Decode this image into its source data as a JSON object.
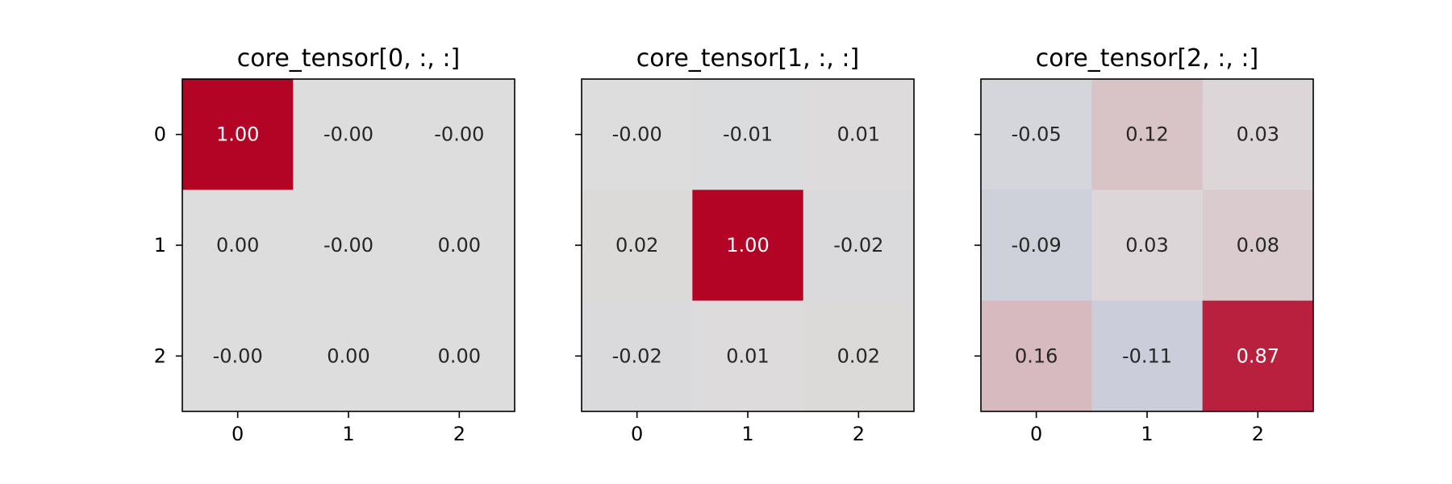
{
  "chart_data": [
    {
      "type": "heatmap",
      "title": "core_tensor[0, :, :]",
      "x_ticks": [
        "0",
        "1",
        "2"
      ],
      "y_ticks": [
        "0",
        "1",
        "2"
      ],
      "show_y_tick_labels": true,
      "values": [
        [
          1.0,
          -0.0,
          -0.0
        ],
        [
          0.0,
          -0.0,
          0.0
        ],
        [
          -0.0,
          0.0,
          0.0
        ]
      ],
      "labels": [
        [
          "1.00",
          "-0.00",
          "-0.00"
        ],
        [
          "0.00",
          "-0.00",
          "0.00"
        ],
        [
          "-0.00",
          "0.00",
          "0.00"
        ]
      ],
      "colormap": "coolwarm",
      "vlim": [
        -1,
        1
      ],
      "grid": false
    },
    {
      "type": "heatmap",
      "title": "core_tensor[1, :, :]",
      "x_ticks": [
        "0",
        "1",
        "2"
      ],
      "y_ticks": [
        "0",
        "1",
        "2"
      ],
      "show_y_tick_labels": false,
      "values": [
        [
          -0.0,
          -0.01,
          0.01
        ],
        [
          0.02,
          1.0,
          -0.02
        ],
        [
          -0.02,
          0.01,
          0.02
        ]
      ],
      "labels": [
        [
          "-0.00",
          "-0.01",
          "0.01"
        ],
        [
          "0.02",
          "1.00",
          "-0.02"
        ],
        [
          "-0.02",
          "0.01",
          "0.02"
        ]
      ],
      "colormap": "coolwarm",
      "vlim": [
        -1,
        1
      ],
      "grid": false
    },
    {
      "type": "heatmap",
      "title": "core_tensor[2, :, :]",
      "x_ticks": [
        "0",
        "1",
        "2"
      ],
      "y_ticks": [
        "0",
        "1",
        "2"
      ],
      "show_y_tick_labels": false,
      "values": [
        [
          -0.05,
          0.12,
          0.03
        ],
        [
          -0.09,
          0.03,
          0.08
        ],
        [
          0.16,
          -0.11,
          0.87
        ]
      ],
      "labels": [
        [
          "-0.05",
          "0.12",
          "0.03"
        ],
        [
          "-0.09",
          "0.03",
          "0.08"
        ],
        [
          "0.16",
          "-0.11",
          "0.87"
        ]
      ],
      "colormap": "coolwarm",
      "vlim": [
        -1,
        1
      ],
      "grid": false
    }
  ],
  "colors": {
    "low": "#3b4cc0",
    "mid": "#dddddd",
    "high": "#b40426",
    "text_dark": "#262626",
    "text_light": "#ffffff"
  }
}
